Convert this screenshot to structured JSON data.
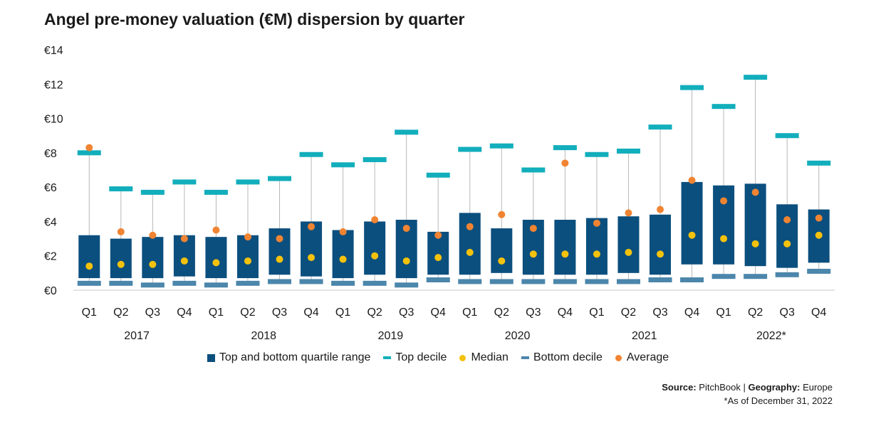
{
  "title": "Angel pre-money valuation (€M) dispersion by quarter",
  "legend": {
    "box": "Top and bottom quartile range",
    "top_decile": "Top decile",
    "median": "Median",
    "bottom_decile": "Bottom decile",
    "average": "Average"
  },
  "footer": {
    "source_label": "Source:",
    "source_value": "PitchBook",
    "sep": "|",
    "geo_label": "Geography:",
    "geo_value": "Europe",
    "note": "*As of December 31, 2022"
  },
  "colors": {
    "box": "#0b4f7e",
    "top_decile": "#12aebc",
    "median": "#f4c20d",
    "bottom_decile": "#4b86ab",
    "average": "#f08432",
    "whisker": "#b8b8b8",
    "axis": "#c8c8c8"
  },
  "chart_data": {
    "type": "box",
    "title": "Angel pre-money valuation (€M) dispersion by quarter",
    "ylim": [
      0,
      14
    ],
    "yticks": [
      "€0",
      "€2",
      "€4",
      "€6",
      "€8",
      "€10",
      "€12",
      "€14"
    ],
    "ytick_values": [
      0,
      2,
      4,
      6,
      8,
      10,
      12,
      14
    ],
    "categories": [
      "Q1",
      "Q2",
      "Q3",
      "Q4",
      "Q1",
      "Q2",
      "Q3",
      "Q4",
      "Q1",
      "Q2",
      "Q3",
      "Q4",
      "Q1",
      "Q2",
      "Q3",
      "Q4",
      "Q1",
      "Q2",
      "Q3",
      "Q4",
      "Q1",
      "Q2",
      "Q3",
      "Q4"
    ],
    "years": [
      "2017",
      "2018",
      "2019",
      "2020",
      "2021",
      "2022*"
    ],
    "grid": false,
    "legend_position": "bottom",
    "series": [
      {
        "name": "Top decile",
        "values": [
          8.0,
          5.9,
          5.7,
          6.3,
          5.7,
          6.3,
          6.5,
          7.9,
          7.3,
          7.6,
          9.2,
          6.7,
          8.2,
          8.4,
          7.0,
          8.3,
          7.9,
          8.1,
          9.5,
          11.8,
          10.7,
          12.4,
          9.0,
          7.4
        ]
      },
      {
        "name": "Top and bottom quartile range",
        "upper": [
          3.2,
          3.0,
          3.1,
          3.2,
          3.1,
          3.2,
          3.6,
          4.0,
          3.5,
          4.0,
          4.1,
          3.4,
          4.5,
          3.6,
          4.1,
          4.1,
          4.2,
          4.3,
          4.4,
          6.3,
          6.1,
          6.2,
          5.0,
          4.7
        ],
        "lower": [
          0.7,
          0.7,
          0.7,
          0.8,
          0.7,
          0.7,
          0.9,
          0.8,
          0.7,
          0.9,
          0.7,
          0.9,
          0.9,
          1.0,
          0.9,
          0.9,
          0.9,
          1.0,
          0.9,
          1.5,
          1.5,
          1.4,
          1.3,
          1.6
        ]
      },
      {
        "name": "Median",
        "values": [
          1.4,
          1.5,
          1.5,
          1.7,
          1.6,
          1.7,
          1.8,
          1.9,
          1.8,
          2.0,
          1.7,
          1.9,
          2.2,
          1.7,
          2.1,
          2.1,
          2.1,
          2.2,
          2.1,
          3.2,
          3.0,
          2.7,
          2.7,
          3.2
        ]
      },
      {
        "name": "Bottom decile",
        "values": [
          0.4,
          0.4,
          0.3,
          0.4,
          0.3,
          0.4,
          0.5,
          0.5,
          0.4,
          0.4,
          0.3,
          0.6,
          0.5,
          0.5,
          0.5,
          0.5,
          0.5,
          0.5,
          0.6,
          0.6,
          0.8,
          0.8,
          0.9,
          1.1
        ]
      },
      {
        "name": "Average",
        "values": [
          8.3,
          3.4,
          3.2,
          3.0,
          3.5,
          3.1,
          3.0,
          3.7,
          3.4,
          4.1,
          3.6,
          3.2,
          3.7,
          4.4,
          3.6,
          7.4,
          3.9,
          4.5,
          4.7,
          6.4,
          5.2,
          5.7,
          4.1,
          4.2
        ]
      }
    ]
  }
}
